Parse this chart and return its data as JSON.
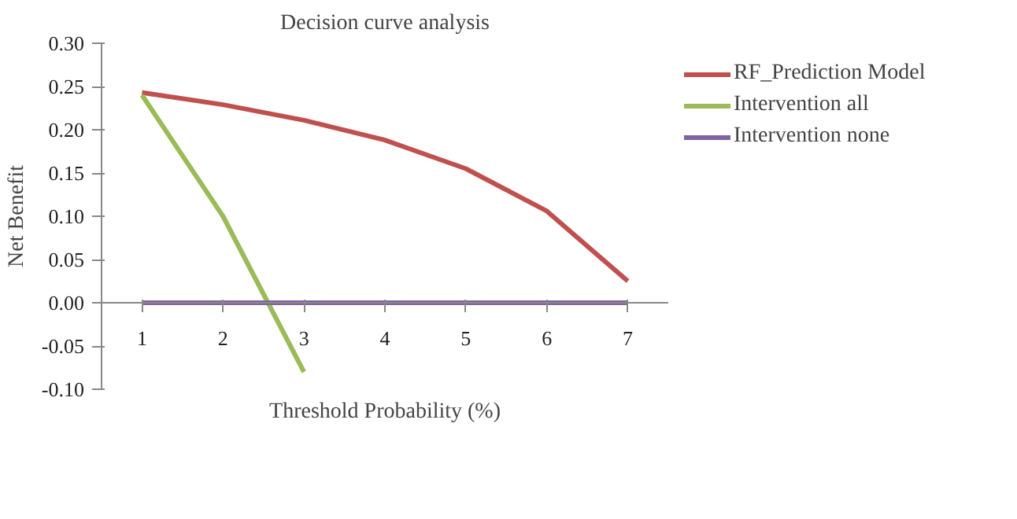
{
  "chart_data": {
    "type": "line",
    "title": "Decision curve analysis",
    "xlabel": "Threshold Probability (%)",
    "ylabel": "Net Benefit",
    "categories": [
      "1",
      "2",
      "3",
      "4",
      "5",
      "6",
      "7"
    ],
    "series": [
      {
        "name": "RF_Prediction Model",
        "color": "#c0504d",
        "values": [
          0.243,
          0.229,
          0.211,
          0.188,
          0.155,
          0.106,
          0.025
        ]
      },
      {
        "name": "Intervention all",
        "color": "#9bbb59",
        "values": [
          0.24,
          0.1,
          -0.08,
          null,
          null,
          null,
          null
        ]
      },
      {
        "name": "Intervention none",
        "color": "#8064a2",
        "values": [
          0,
          0,
          0,
          0,
          0,
          0,
          0
        ]
      }
    ],
    "ylim": [
      -0.1,
      0.3
    ],
    "yticks": [
      {
        "value": -0.1,
        "label": "-0.10"
      },
      {
        "value": -0.05,
        "label": "-0.05"
      },
      {
        "value": 0,
        "label": "0.00"
      },
      {
        "value": 0.05,
        "label": "0.05"
      },
      {
        "value": 0.1,
        "label": "0.10"
      },
      {
        "value": 0.15,
        "label": "0.15"
      },
      {
        "value": 0.2,
        "label": "0.20"
      },
      {
        "value": 0.25,
        "label": "0.25"
      },
      {
        "value": 0.3,
        "label": "0.30"
      }
    ],
    "grid": false,
    "legend": "right",
    "line_style": "solid"
  }
}
